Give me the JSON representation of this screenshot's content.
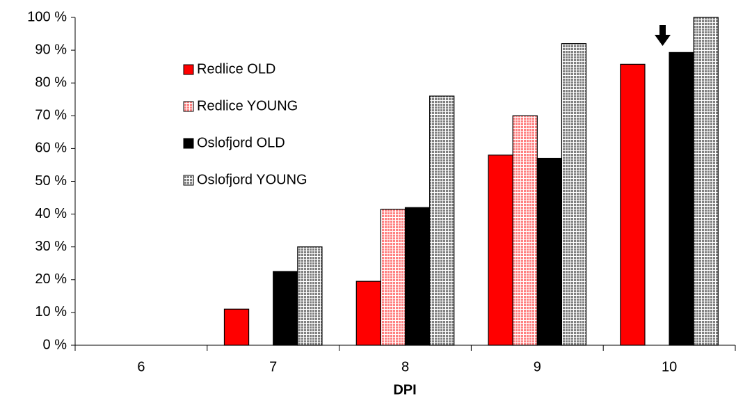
{
  "chart_data": {
    "type": "bar",
    "x_label": "DPI",
    "categories": [
      "6",
      "7",
      "8",
      "9",
      "10"
    ],
    "series": [
      {
        "name": "Redlice OLD",
        "color": "#ff0000",
        "pattern": "solid",
        "values": [
          0,
          11,
          19.5,
          58,
          85.7
        ]
      },
      {
        "name": "Redlice YOUNG",
        "color": "#ff8080",
        "pattern": "grid",
        "values": [
          0,
          0,
          41.5,
          70,
          null
        ]
      },
      {
        "name": "Oslofjord OLD",
        "color": "#000000",
        "pattern": "solid",
        "values": [
          0,
          22.5,
          42,
          57,
          89.3
        ]
      },
      {
        "name": "Oslofjord YOUNG",
        "color": "#808080",
        "pattern": "grid",
        "values": [
          0,
          30,
          76,
          92,
          100
        ]
      }
    ],
    "ylim": [
      0,
      100
    ],
    "yticks": [
      {
        "value": 0,
        "label": "0 %"
      },
      {
        "value": 10,
        "label": "10 %"
      },
      {
        "value": 20,
        "label": "20 %"
      },
      {
        "value": 30,
        "label": "30 %"
      },
      {
        "value": 40,
        "label": "40 %"
      },
      {
        "value": 50,
        "label": "50 %"
      },
      {
        "value": 60,
        "label": "60 %"
      },
      {
        "value": 70,
        "label": "70 %"
      },
      {
        "value": 80,
        "label": "80 %"
      },
      {
        "value": 90,
        "label": "90 %"
      },
      {
        "value": 100,
        "label": "100 %"
      }
    ],
    "grid": false,
    "legend": "upper left"
  }
}
